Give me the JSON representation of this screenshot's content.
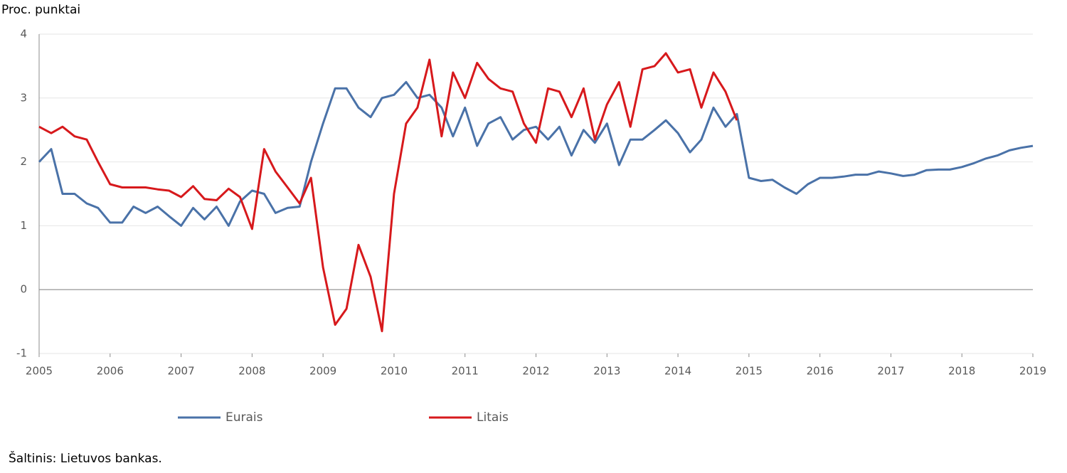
{
  "chart_data": {
    "type": "line",
    "ylabel": "Proc. punktai",
    "source": "Šaltinis: Lietuvos bankas.",
    "x": [
      2005,
      2005.17,
      2005.33,
      2005.5,
      2005.67,
      2005.83,
      2006,
      2006.17,
      2006.33,
      2006.5,
      2006.67,
      2006.83,
      2007,
      2007.17,
      2007.33,
      2007.5,
      2007.67,
      2007.83,
      2008,
      2008.17,
      2008.33,
      2008.5,
      2008.67,
      2008.83,
      2009,
      2009.17,
      2009.33,
      2009.5,
      2009.67,
      2009.83,
      2010,
      2010.17,
      2010.33,
      2010.5,
      2010.67,
      2010.83,
      2011,
      2011.17,
      2011.33,
      2011.5,
      2011.67,
      2011.83,
      2012,
      2012.17,
      2012.33,
      2012.5,
      2012.67,
      2012.83,
      2013,
      2013.17,
      2013.33,
      2013.5,
      2013.67,
      2013.83,
      2014,
      2014.17,
      2014.33,
      2014.5,
      2014.67,
      2014.83,
      2015,
      2015.17,
      2015.33,
      2015.5,
      2015.67,
      2015.83,
      2016,
      2016.17,
      2016.33,
      2016.5,
      2016.67,
      2016.83,
      2017,
      2017.17,
      2017.33,
      2017.5,
      2017.67,
      2017.83,
      2018,
      2018.17,
      2018.33,
      2018.5,
      2018.67,
      2018.83,
      2019
    ],
    "series": [
      {
        "name": "Eurais",
        "color": "#4a72a8",
        "values": [
          2.0,
          2.2,
          1.5,
          1.5,
          1.35,
          1.28,
          1.05,
          1.05,
          1.3,
          1.2,
          1.3,
          1.15,
          1.0,
          1.28,
          1.1,
          1.3,
          1.0,
          1.38,
          1.55,
          1.5,
          1.2,
          1.28,
          1.3,
          2.0,
          2.6,
          3.15,
          3.15,
          2.85,
          2.7,
          3.0,
          3.05,
          3.25,
          3.0,
          3.05,
          2.85,
          2.4,
          2.85,
          2.25,
          2.6,
          2.7,
          2.35,
          2.5,
          2.55,
          2.35,
          2.55,
          2.1,
          2.5,
          2.3,
          2.6,
          1.95,
          2.35,
          2.35,
          2.5,
          2.65,
          2.45,
          2.15,
          2.35,
          2.85,
          2.55,
          2.75,
          1.75,
          1.7,
          1.72,
          1.6,
          1.5,
          1.65,
          1.75,
          1.75,
          1.77,
          1.8,
          1.8,
          1.85,
          1.82,
          1.78,
          1.8,
          1.87,
          1.88,
          1.88,
          1.92,
          1.98,
          2.05,
          2.1,
          2.18,
          2.22,
          2.25
        ]
      },
      {
        "name": "Litais",
        "color": "#d7191c",
        "values": [
          2.55,
          2.45,
          2.55,
          2.4,
          2.35,
          2.0,
          1.65,
          1.6,
          1.6,
          1.6,
          1.57,
          1.55,
          1.45,
          1.62,
          1.42,
          1.4,
          1.58,
          1.45,
          0.95,
          2.2,
          1.85,
          1.6,
          1.35,
          1.75,
          0.35,
          -0.55,
          -0.3,
          0.7,
          0.2,
          -0.65,
          1.5,
          2.6,
          2.85,
          3.6,
          2.4,
          3.4,
          3.0,
          3.55,
          3.3,
          3.15,
          3.1,
          2.6,
          2.3,
          3.15,
          3.1,
          2.7,
          3.15,
          2.35,
          2.9,
          3.25,
          2.55,
          3.45,
          3.5,
          3.7,
          3.4,
          3.45,
          2.85,
          3.4,
          3.1,
          2.65,
          null,
          null,
          null,
          null,
          null,
          null,
          null,
          null,
          null,
          null,
          null,
          null,
          null,
          null,
          null,
          null,
          null,
          null,
          null,
          null,
          null,
          null,
          null,
          null,
          null
        ]
      }
    ],
    "xlim": [
      2005,
      2019.1
    ],
    "xticks": [
      2005,
      2006,
      2007,
      2008,
      2009,
      2010,
      2011,
      2012,
      2013,
      2014,
      2015,
      2016,
      2017,
      2018,
      2019
    ],
    "ylim": [
      -1,
      4
    ],
    "yticks": [
      -1,
      0,
      1,
      2,
      3,
      4
    ],
    "grid": true,
    "legend": "bottom"
  }
}
